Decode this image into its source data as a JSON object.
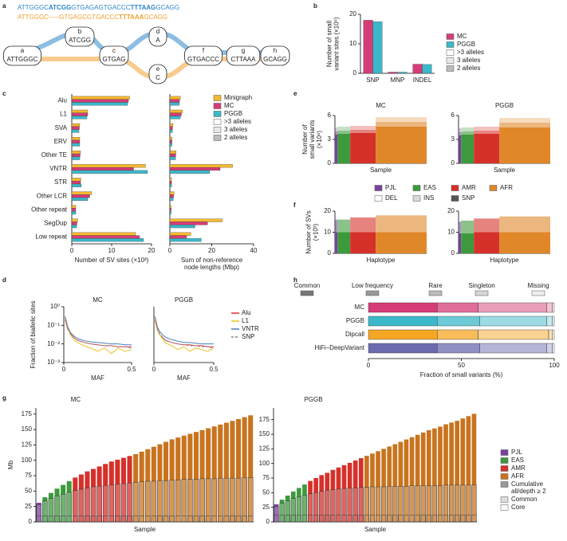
{
  "panel_labels": [
    "a",
    "b",
    "c",
    "d",
    "e",
    "f",
    "g",
    "h"
  ],
  "panel_a": {
    "sequences": [
      {
        "color": "#2f86c9",
        "parts": [
          {
            "text": "ATTGGGC"
          },
          {
            "text": "ATCGG",
            "bold": true
          },
          {
            "text": "GTGAGAGTGACCC"
          },
          {
            "text": "TTTAAG",
            "bold": true
          },
          {
            "text": "GCAGG"
          }
        ]
      },
      {
        "color": "#f0a030",
        "parts": [
          {
            "text": "ATTGGGC"
          },
          {
            "text": "-----"
          },
          {
            "text": "GTGAGCGTGACCC"
          },
          {
            "text": "TTTAAA",
            "bold": true
          },
          {
            "text": "GCAGG"
          }
        ]
      }
    ],
    "nodes": [
      {
        "id": "a",
        "seq": "ATTGGGC"
      },
      {
        "id": "b",
        "seq": "ATCGG"
      },
      {
        "id": "c",
        "seq": "GTGAG"
      },
      {
        "id": "d",
        "seq": "A"
      },
      {
        "id": "e",
        "seq": "C"
      },
      {
        "id": "f",
        "seq": "GTGACCC"
      },
      {
        "id": "g",
        "seq": "CTTAAA"
      },
      {
        "id": "h",
        "seq": "GCAGG"
      }
    ]
  },
  "chart_data": [
    {
      "type": "bar",
      "ylabel": [
        "Number of small",
        "variant sites (×10⁶)"
      ],
      "categories": [
        "SNP",
        "MNP",
        "INDEL"
      ],
      "series": [
        {
          "name": "MC",
          "color": "#d63c77",
          "values": [
            18,
            0.4,
            3.1
          ]
        },
        {
          "name": "PGGB",
          "color": "#3bb8c9",
          "values": [
            17.5,
            0.4,
            3.0
          ]
        }
      ],
      "allele_legend": [
        {
          "name": ">3 alleles",
          "color": "#ffffff"
        },
        {
          "name": "3 alleles",
          "color": "#e8e8e8"
        },
        {
          "name": "2 alleles",
          "color": "#bdbdbd"
        }
      ],
      "ylim": [
        0,
        20
      ],
      "yticks": [
        0,
        10,
        20
      ]
    },
    {
      "type": "barh",
      "xlabel": "Number of SV sites (×10³)",
      "categories": [
        "Alu",
        "L1",
        "SVA",
        "ERV",
        "Other TE",
        "VNTR",
        "STR",
        "Other LCR",
        "Other repeat",
        "SegDup",
        "Low repeat"
      ],
      "series": [
        {
          "name": "Minigraph",
          "color": "#f5b82e",
          "values": [
            14.5,
            4,
            2,
            2,
            2.2,
            18.5,
            2.3,
            5,
            1,
            1.5,
            16
          ]
        },
        {
          "name": "MC",
          "color": "#d63c77",
          "values": [
            14.2,
            4,
            1.9,
            2,
            2.1,
            15.5,
            2.2,
            4.5,
            1,
            1.3,
            17
          ]
        },
        {
          "name": "PGGB",
          "color": "#3bb8c9",
          "values": [
            14,
            3.8,
            1.8,
            2,
            2,
            19,
            2.4,
            4,
            1,
            1.2,
            18
          ]
        }
      ],
      "allele_legend": [
        {
          "name": ">3 alleles",
          "color": "#ffffff"
        },
        {
          "name": "3 alleles",
          "color": "#e8e8e8"
        },
        {
          "name": "2 alleles",
          "color": "#bdbdbd"
        }
      ],
      "xlim": [
        0,
        20
      ],
      "xticks": [
        0,
        10,
        20
      ]
    },
    {
      "type": "barh",
      "xlabel": [
        "Sum of non-reference",
        "node lengths (Mbp)"
      ],
      "series": [
        {
          "color": "#f5b82e",
          "values": [
            5,
            6,
            1.5,
            1,
            3,
            30,
            0.8,
            2,
            0.6,
            25,
            10
          ]
        },
        {
          "color": "#d63c77",
          "values": [
            4.6,
            5.5,
            1.3,
            1,
            2.8,
            24,
            0.8,
            1.8,
            0.6,
            18,
            8
          ]
        },
        {
          "color": "#3bb8c9",
          "values": [
            4.5,
            5,
            1.2,
            1,
            2.7,
            19,
            0.8,
            1.6,
            0.6,
            12,
            15
          ]
        }
      ],
      "xlim": [
        0,
        40
      ],
      "xticks": [
        0,
        20,
        40
      ]
    },
    {
      "type": "line",
      "title": "MC",
      "xlabel": "MAF",
      "ylabel": "Fraction of biallelic sites",
      "log_y": true,
      "x": [
        0.01,
        0.03,
        0.05,
        0.08,
        0.1,
        0.15,
        0.2,
        0.25,
        0.3,
        0.35,
        0.4,
        0.45,
        0.5
      ],
      "series": [
        {
          "name": "Alu",
          "color": "#e03030",
          "values": [
            0.2,
            0.06,
            0.035,
            0.02,
            0.016,
            0.012,
            0.01,
            0.009,
            0.008,
            0.008,
            0.007,
            0.007,
            0.007
          ]
        },
        {
          "name": "L1",
          "color": "#f0c020",
          "values": [
            0.25,
            0.07,
            0.03,
            0.015,
            0.012,
            0.008,
            0.006,
            0.004,
            0.006,
            0.003,
            0.006,
            0.004,
            0.005
          ]
        },
        {
          "name": "VNTR",
          "color": "#4a7fc0",
          "values": [
            0.3,
            0.08,
            0.04,
            0.025,
            0.02,
            0.015,
            0.013,
            0.012,
            0.011,
            0.01,
            0.01,
            0.009,
            0.009
          ]
        },
        {
          "name": "SNP",
          "color": "#888888",
          "dash": true,
          "values": [
            0.3,
            0.07,
            0.035,
            0.02,
            0.016,
            0.012,
            0.01,
            0.009,
            0.008,
            0.008,
            0.007,
            0.007,
            0.006
          ]
        }
      ],
      "xlim": [
        0,
        0.5
      ],
      "xticks": [
        0,
        0.5
      ],
      "ylim": [
        0.001,
        1
      ],
      "yticks": [
        {
          "value": 1,
          "label": "10⁰"
        },
        {
          "value": 0.1,
          "label": "10⁻¹"
        },
        {
          "value": 0.01,
          "label": "10⁻²"
        },
        {
          "value": 0.001,
          "label": "10⁻³"
        }
      ]
    },
    {
      "type": "line",
      "title": "PGGB",
      "xlabel": "MAF",
      "log_y": true,
      "x": [
        0.01,
        0.03,
        0.05,
        0.08,
        0.1,
        0.15,
        0.2,
        0.25,
        0.3,
        0.35,
        0.4,
        0.45,
        0.5
      ],
      "series": [
        {
          "color": "#e03030",
          "values": [
            0.18,
            0.055,
            0.03,
            0.02,
            0.015,
            0.012,
            0.01,
            0.009,
            0.009,
            0.008,
            0.008,
            0.007,
            0.007
          ]
        },
        {
          "color": "#f0c020",
          "values": [
            0.22,
            0.06,
            0.03,
            0.016,
            0.011,
            0.008,
            0.005,
            0.007,
            0.004,
            0.006,
            0.005,
            0.004,
            0.006
          ]
        },
        {
          "color": "#4a7fc0",
          "values": [
            0.28,
            0.08,
            0.045,
            0.028,
            0.022,
            0.017,
            0.014,
            0.012,
            0.012,
            0.011,
            0.01,
            0.01,
            0.01
          ]
        },
        {
          "color": "#888888",
          "dash": true,
          "values": [
            0.3,
            0.07,
            0.035,
            0.02,
            0.016,
            0.012,
            0.01,
            0.009,
            0.008,
            0.008,
            0.007,
            0.007,
            0.006
          ]
        }
      ],
      "xlim": [
        0,
        0.5
      ],
      "xticks": [
        0,
        0.5
      ],
      "ylim": [
        0.001,
        1
      ]
    },
    {
      "type": "stacked_area",
      "ylabel": [
        "Number of",
        "small variants",
        "(×10⁶)"
      ],
      "populations": [
        {
          "name": "PJL",
          "color": "#7b3f9e",
          "count": 1
        },
        {
          "name": "EAS",
          "color": "#3c9a3c",
          "count": 5
        },
        {
          "name": "AMR",
          "color": "#d6302a",
          "count": 10
        },
        {
          "name": "AFR",
          "color": "#e0872a",
          "count": 20
        }
      ],
      "layers": [
        {
          "name": "DEL",
          "color": "#ffffff"
        },
        {
          "name": "INS",
          "color": "#d9d9d9"
        },
        {
          "name": "SNP",
          "color": "#555555"
        }
      ],
      "panels": [
        {
          "title": "MC",
          "xlabel": "Sample",
          "values": [
            [
              0.5,
              0.4,
              3.6
            ],
            [
              0.5,
              0.4,
              3.7
            ],
            [
              0.5,
              0.4,
              3.8
            ],
            [
              0.6,
              0.6,
              4.6
            ]
          ]
        },
        {
          "title": "PGGB",
          "xlabel": "Sample",
          "values": [
            [
              0.5,
              0.4,
              3.5
            ],
            [
              0.5,
              0.4,
              3.6
            ],
            [
              0.5,
              0.4,
              3.7
            ],
            [
              0.6,
              0.6,
              4.5
            ]
          ]
        }
      ],
      "ylim": [
        0,
        6
      ],
      "yticks": [
        0,
        3,
        6
      ]
    },
    {
      "type": "stacked_area",
      "ylabel": [
        "Number of SVs",
        "(×10³)"
      ],
      "panels": [
        {
          "xlabel": "Haplotype",
          "values": [
            [
              6,
              10
            ],
            [
              6,
              10
            ],
            [
              7,
              10
            ],
            [
              8,
              10
            ]
          ]
        },
        {
          "xlabel": "Haplotype",
          "values": [
            [
              5.5,
              9.5
            ],
            [
              6,
              9.5
            ],
            [
              6.5,
              10
            ],
            [
              7.5,
              10
            ]
          ]
        }
      ],
      "ylim": [
        0,
        20
      ],
      "yticks": [
        0,
        10,
        20
      ]
    },
    {
      "type": "stacked_barh",
      "categories": [
        "MC",
        "PGGB",
        "Dipcall",
        "HiFi–DeepVariant"
      ],
      "row_colors": [
        "#d63c77",
        "#3bb8c9",
        "#f5a623",
        "#6b6bb0"
      ],
      "series": [
        {
          "name": "Common",
          "values": [
            37,
            37,
            37,
            37
          ]
        },
        {
          "name": "Low frequency",
          "values": [
            22,
            23,
            22,
            23
          ]
        },
        {
          "name": "Rare",
          "values": [
            37,
            36,
            38,
            36
          ]
        },
        {
          "name": "Singleton",
          "values": [
            3,
            3,
            2,
            3
          ]
        },
        {
          "name": "Missing",
          "values": [
            1,
            1,
            1,
            1
          ]
        }
      ],
      "xlabel": "Fraction of small variants (%)",
      "xlim": [
        0,
        100
      ],
      "xticks": [
        0,
        50,
        100
      ]
    },
    {
      "type": "bar",
      "title": "MC",
      "ylabel": "Mb",
      "xlabel": "Sample",
      "populations": [
        {
          "name": "PJL",
          "color": "#7b3f9e",
          "count": 1
        },
        {
          "name": "EAS",
          "color": "#3c9a3c",
          "count": 5
        },
        {
          "name": "AMR",
          "color": "#d6302a",
          "count": 10
        },
        {
          "name": "AFR",
          "color": "#c8741f",
          "count": 20
        }
      ],
      "layer_legend": [
        {
          "name": [
            "Cumulative",
            "all/depth ≥ 2"
          ],
          "color": "#999999"
        },
        {
          "name": "Common",
          "color": "#dddddd"
        },
        {
          "name": "Core",
          "color": "#ffffff"
        }
      ],
      "values": [
        31,
        40,
        47,
        54,
        60,
        66,
        72,
        77,
        82,
        86,
        90,
        94,
        98,
        101,
        104,
        107,
        110,
        114,
        118,
        122,
        126,
        130,
        134,
        137,
        140,
        143,
        146,
        149,
        152,
        155,
        158,
        161,
        164,
        167,
        170,
        173
      ],
      "common": [
        28,
        34,
        38,
        42,
        45,
        48,
        51,
        53,
        55,
        57,
        58,
        59,
        60,
        61,
        62,
        63,
        64,
        65,
        66,
        66,
        67,
        67,
        68,
        68,
        69,
        69,
        69,
        70,
        70,
        70,
        71,
        71,
        71,
        71,
        72,
        72
      ],
      "core": 10,
      "ylim": [
        0,
        185
      ],
      "yticks": [
        0,
        25,
        50,
        75,
        100,
        125,
        150,
        175
      ]
    },
    {
      "type": "bar",
      "title": "PGGB",
      "xlabel": "Sample",
      "values": [
        30,
        38,
        45,
        52,
        58,
        64,
        70,
        75,
        80,
        84,
        89,
        93,
        97,
        101,
        105,
        109,
        113,
        117,
        121,
        125,
        129,
        133,
        137,
        141,
        145,
        149,
        153,
        157,
        160,
        163,
        167,
        170,
        173,
        177,
        181,
        185
      ],
      "common": [
        26,
        32,
        36,
        40,
        43,
        46,
        48,
        50,
        52,
        54,
        55,
        56,
        57,
        58,
        58,
        59,
        59,
        60,
        60,
        60,
        61,
        61,
        61,
        61,
        62,
        62,
        62,
        62,
        62,
        62,
        63,
        63,
        63,
        63,
        63,
        63
      ],
      "core": 12,
      "ylim": [
        0,
        195
      ],
      "yticks": [
        0,
        25,
        50,
        75,
        100,
        125,
        150,
        175
      ]
    }
  ]
}
